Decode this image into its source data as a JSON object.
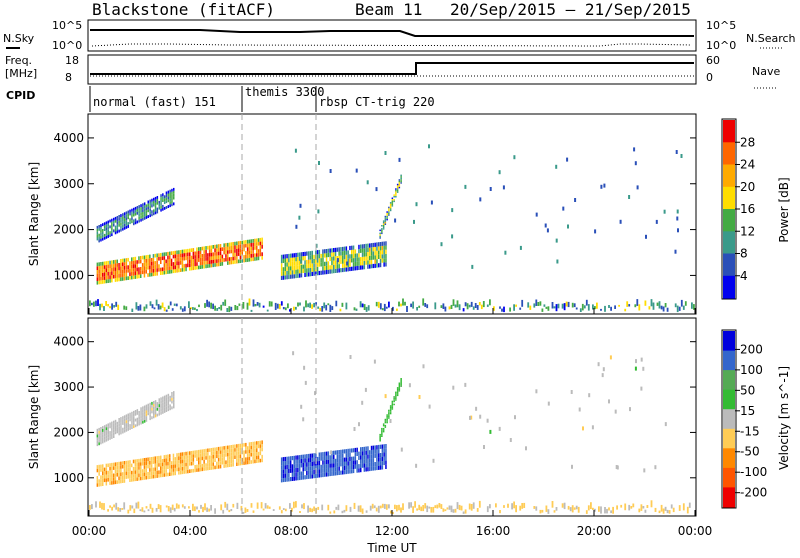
{
  "header": {
    "station": "Blackstone (fitACF)",
    "beam": "Beam 11",
    "date_range": "20/Sep/2015 – 21/Sep/2015"
  },
  "top_panels": {
    "nsky_label": "N.Sky",
    "nsky_ticks": [
      "10^5",
      "10^0"
    ],
    "nsearch_label": "N.Search",
    "nsearch_ticks": [
      "10^5",
      "10^0"
    ],
    "freq_label_1": "Freq.",
    "freq_label_2": "[MHz]",
    "freq_ticks": [
      "18",
      "8"
    ],
    "nave_label": "Nave",
    "nave_ticks": [
      "60",
      "0"
    ],
    "cpid_label": "CPID",
    "cpid_modes": [
      {
        "name": "normal (fast) 151",
        "start_hour": 0,
        "end_hour": 6
      },
      {
        "name": "themis 3300",
        "start_hour": 6,
        "end_hour": 9
      },
      {
        "name": "rbsp CT-trig 220",
        "start_hour": 9,
        "end_hour": 24
      }
    ]
  },
  "chart_data": [
    {
      "type": "heatmap",
      "name": "power",
      "ylabel": "Slant Range [km]",
      "ylim": [
        180,
        4500
      ],
      "yticks": [
        "1000",
        "2000",
        "3000",
        "4000"
      ],
      "xlim": [
        0,
        24
      ],
      "colorbar_label": "Power [dB]",
      "colorbar_ticks": [
        "28",
        "24",
        "20",
        "16",
        "12",
        "8",
        "4"
      ],
      "colorbar_range": [
        0,
        30
      ],
      "colorbar_colors": [
        "#0000ee",
        "#2a4fb8",
        "#3a9a8a",
        "#44aa44",
        "#ffdd00",
        "#ffaa00",
        "#ff6600",
        "#ee0000"
      ],
      "features": [
        {
          "kind": "band",
          "x": [
            0.3,
            3.4
          ],
          "y_start": [
            1700,
            2550
          ],
          "thickness": 380,
          "value": 10
        },
        {
          "kind": "band",
          "x": [
            0.3,
            6.9
          ],
          "y_start": [
            800,
            1350
          ],
          "thickness": 480,
          "value": 24
        },
        {
          "kind": "band",
          "x": [
            7.6,
            11.8
          ],
          "y_start": [
            900,
            1200
          ],
          "thickness": 550,
          "value": 14
        },
        {
          "kind": "band",
          "x": [
            11.5,
            12.4
          ],
          "y_start": [
            1800,
            3100
          ],
          "thickness": 200,
          "value": 14
        },
        {
          "kind": "ground",
          "x": [
            0,
            24
          ],
          "y": [
            200,
            450
          ],
          "value": 10
        }
      ]
    },
    {
      "type": "heatmap",
      "name": "velocity",
      "ylabel": "Slant Range [km]",
      "xlabel": "Time UT",
      "ylim": [
        180,
        4500
      ],
      "yticks": [
        "1000",
        "2000",
        "3000",
        "4000"
      ],
      "xlim": [
        0,
        24
      ],
      "xticks": [
        "00:00",
        "04:00",
        "08:00",
        "12:00",
        "16:00",
        "20:00",
        "00:00"
      ],
      "colorbar_label": "Velocity [m s^-1]",
      "colorbar_ticks": [
        "200",
        "100",
        "50",
        "15",
        "-15",
        "-50",
        "-100",
        "-200"
      ],
      "colorbar_range": [
        -250,
        250
      ],
      "colorbar_colors": [
        "#ee0000",
        "#ff5500",
        "#ff8800",
        "#ffcc55",
        "#bbbbbb",
        "#33bb33",
        "#55aa55",
        "#3366cc",
        "#0000dd"
      ],
      "features": [
        {
          "kind": "band",
          "x": [
            0.3,
            3.4
          ],
          "y_start": [
            1700,
            2550
          ],
          "thickness": 380,
          "value": 0
        },
        {
          "kind": "band",
          "x": [
            0.3,
            6.9
          ],
          "y_start": [
            800,
            1350
          ],
          "thickness": 480,
          "value": -70
        },
        {
          "kind": "band",
          "x": [
            7.6,
            11.8
          ],
          "y_start": [
            900,
            1200
          ],
          "thickness": 550,
          "value": 180
        },
        {
          "kind": "band",
          "x": [
            11.5,
            12.4
          ],
          "y_start": [
            1800,
            3100
          ],
          "thickness": 200,
          "value": 60
        },
        {
          "kind": "ground",
          "x": [
            0,
            24
          ],
          "y": [
            200,
            450
          ],
          "value": -40
        }
      ]
    }
  ]
}
